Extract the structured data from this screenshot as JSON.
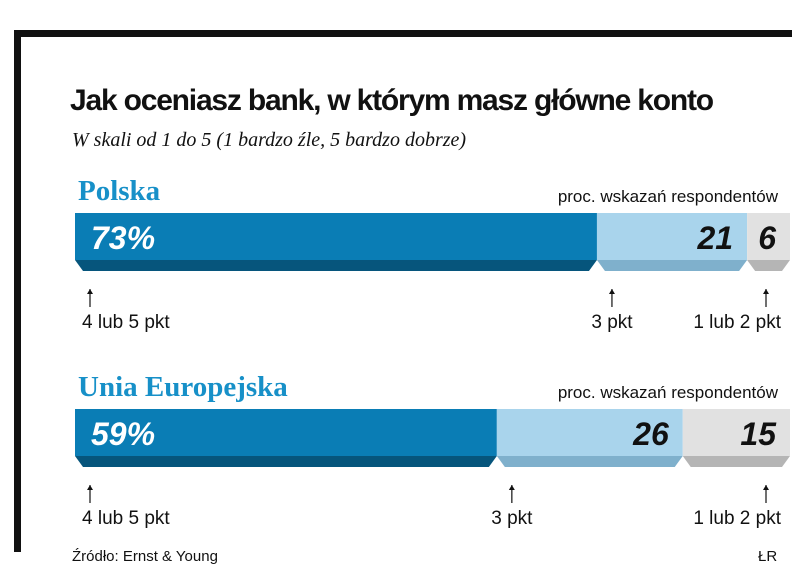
{
  "header": {
    "title": "Jak oceniasz bank, w którym masz główne konto",
    "subtitle": "W skali od 1 do 5 (1 bardzo źle, 5 bardzo dobrze)"
  },
  "colors": {
    "positive": "#0a7db5",
    "neutral": "#a9d4ec",
    "negative": "#e1e1e1",
    "region_label": "#1790c8",
    "text": "#111111"
  },
  "chart_data": {
    "type": "bar",
    "stacked": true,
    "orientation": "horizontal",
    "unit_label": "proc. wskazań respondentów",
    "categories": [
      "Polska",
      "Unia Europejska"
    ],
    "series": [
      {
        "name": "4 lub 5 pkt",
        "values": [
          73,
          59
        ],
        "labels": [
          "73%",
          "59%"
        ]
      },
      {
        "name": "3 pkt",
        "values": [
          21,
          26
        ],
        "labels": [
          "21",
          "26"
        ]
      },
      {
        "name": "1 lub 2 pkt",
        "values": [
          6,
          15
        ],
        "labels": [
          "6",
          "15"
        ]
      }
    ],
    "xlim": [
      0,
      100
    ]
  },
  "footer": {
    "source": "Źródło: Ernst & Young",
    "credit": "ŁR"
  }
}
